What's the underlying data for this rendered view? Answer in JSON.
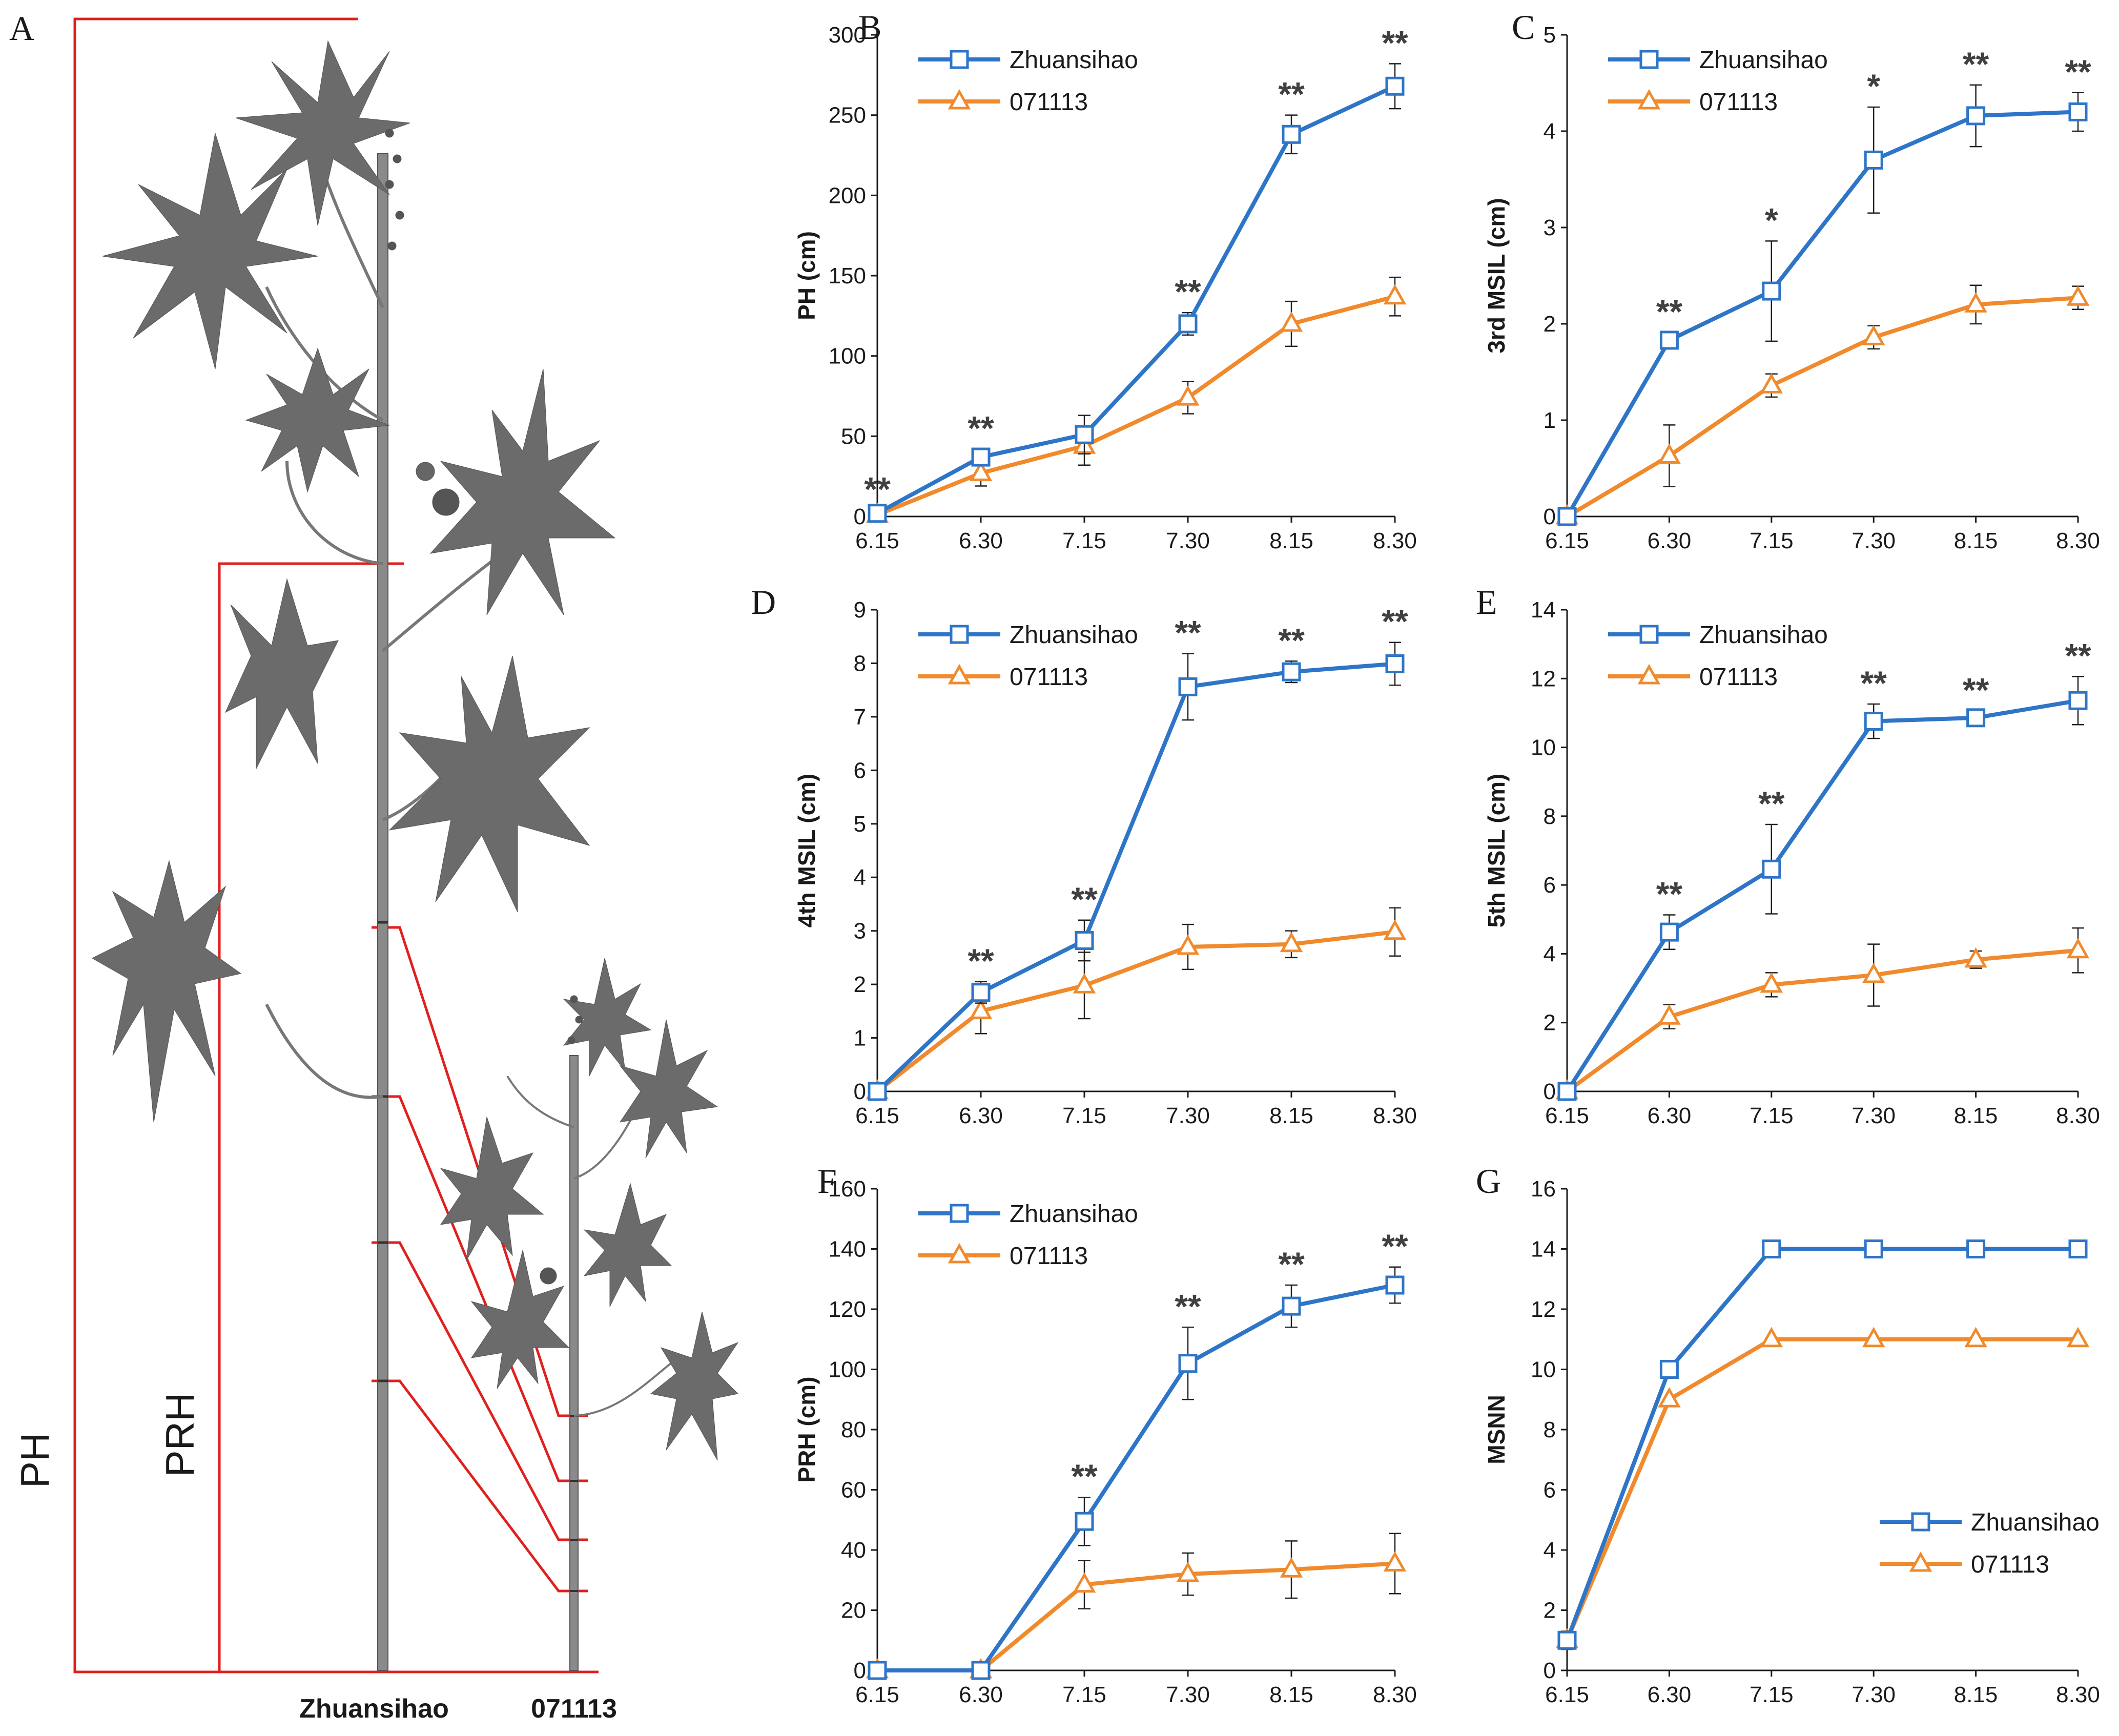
{
  "colors": {
    "series1": "#2E75C8",
    "series2": "#F08A2C",
    "bracket": "#E0201E",
    "axis": "#1a1a1a",
    "plant": "#555555"
  },
  "panel_a": {
    "letter": "A",
    "ph_label": "PH",
    "prh_label": "PRH",
    "cultivar_left": "Zhuansihao",
    "cultivar_right": "071113"
  },
  "chart_data": [
    {
      "id": "B",
      "letter": "B",
      "type": "line",
      "ylabel": "PH (cm)",
      "ylim": [
        0,
        300
      ],
      "yticks": [
        0,
        50,
        100,
        150,
        200,
        250,
        300
      ],
      "categories": [
        "6.15",
        "6.30",
        "7.15",
        "7.30",
        "8.15",
        "8.30"
      ],
      "legend_position": "top-left",
      "series": [
        {
          "name": "Zhuansihao",
          "marker": "square",
          "values": [
            2,
            37,
            51,
            120,
            238,
            268
          ],
          "errors": [
            2,
            5,
            12,
            7,
            12,
            14
          ]
        },
        {
          "name": "071113",
          "marker": "triangle",
          "values": [
            1,
            27,
            44,
            74,
            120,
            137
          ],
          "errors": [
            1,
            8,
            12,
            10,
            14,
            12
          ]
        }
      ],
      "significance": [
        "**",
        "**",
        "",
        "**",
        "**",
        "**"
      ]
    },
    {
      "id": "C",
      "letter": "C",
      "type": "line",
      "ylabel": "3rd MSIL (cm)",
      "ylim": [
        0,
        5
      ],
      "yticks": [
        0,
        1,
        2,
        3,
        4,
        5
      ],
      "categories": [
        "6.15",
        "6.30",
        "7.15",
        "7.30",
        "8.15",
        "8.30"
      ],
      "legend_position": "top-left",
      "series": [
        {
          "name": "Zhuansihao",
          "marker": "square",
          "values": [
            0,
            1.83,
            2.34,
            3.7,
            4.16,
            4.2
          ],
          "errors": [
            0,
            0.08,
            0.52,
            0.55,
            0.32,
            0.2
          ]
        },
        {
          "name": "071113",
          "marker": "triangle",
          "values": [
            0,
            0.63,
            1.36,
            1.86,
            2.2,
            2.27
          ],
          "errors": [
            0,
            0.32,
            0.12,
            0.12,
            0.2,
            0.12
          ]
        }
      ],
      "significance": [
        "",
        "**",
        "*",
        "*",
        "**",
        "**"
      ]
    },
    {
      "id": "D",
      "letter": "D",
      "type": "line",
      "ylabel": "4th MSIL (cm)",
      "ylim": [
        0,
        9
      ],
      "yticks": [
        0,
        1,
        2,
        3,
        4,
        5,
        6,
        7,
        8,
        9
      ],
      "categories": [
        "6.15",
        "6.30",
        "7.15",
        "7.30",
        "8.15",
        "8.30"
      ],
      "legend_position": "top-left",
      "series": [
        {
          "name": "Zhuansihao",
          "marker": "square",
          "values": [
            0,
            1.85,
            2.82,
            7.56,
            7.84,
            7.99
          ],
          "errors": [
            0,
            0.2,
            0.38,
            0.62,
            0.2,
            0.4
          ]
        },
        {
          "name": "071113",
          "marker": "triangle",
          "values": [
            0,
            1.5,
            1.98,
            2.7,
            2.75,
            2.98
          ],
          "errors": [
            0,
            0.42,
            0.62,
            0.42,
            0.25,
            0.45
          ]
        }
      ],
      "significance": [
        "",
        "**",
        "**",
        "**",
        "**",
        "**"
      ]
    },
    {
      "id": "E",
      "letter": "E",
      "type": "line",
      "ylabel": "5th MSIL (cm)",
      "ylim": [
        0,
        14
      ],
      "yticks": [
        0,
        2,
        4,
        6,
        8,
        10,
        12,
        14
      ],
      "categories": [
        "6.15",
        "6.30",
        "7.15",
        "7.30",
        "8.15",
        "8.30"
      ],
      "legend_position": "top-left",
      "series": [
        {
          "name": "Zhuansihao",
          "marker": "square",
          "values": [
            0,
            4.63,
            6.46,
            10.76,
            10.86,
            11.36
          ],
          "errors": [
            0,
            0.5,
            1.3,
            0.5,
            0.2,
            0.7
          ]
        },
        {
          "name": "071113",
          "marker": "triangle",
          "values": [
            0,
            2.17,
            3.1,
            3.38,
            3.83,
            4.1
          ],
          "errors": [
            0,
            0.35,
            0.35,
            0.9,
            0.25,
            0.65
          ]
        }
      ],
      "significance": [
        "",
        "**",
        "**",
        "**",
        "**",
        "**"
      ]
    },
    {
      "id": "F",
      "letter": "F",
      "type": "line",
      "ylabel": "PRH (cm)",
      "ylim": [
        0,
        160
      ],
      "yticks": [
        0,
        20,
        40,
        60,
        80,
        100,
        120,
        140,
        160
      ],
      "categories": [
        "6.15",
        "6.30",
        "7.15",
        "7.30",
        "8.15",
        "8.30"
      ],
      "legend_position": "top-left",
      "series": [
        {
          "name": "Zhuansihao",
          "marker": "square",
          "values": [
            0,
            0,
            49.5,
            102,
            121,
            128
          ],
          "errors": [
            0,
            0,
            8,
            12,
            7,
            6
          ]
        },
        {
          "name": "071113",
          "marker": "triangle",
          "values": [
            0,
            0,
            28.5,
            32,
            33.5,
            35.5
          ],
          "errors": [
            0,
            0,
            8,
            7,
            9.5,
            10
          ]
        }
      ],
      "significance": [
        "",
        "",
        "**",
        "**",
        "**",
        "**"
      ]
    },
    {
      "id": "G",
      "letter": "G",
      "type": "line",
      "ylabel": "MSNN",
      "ylim": [
        0,
        16
      ],
      "yticks": [
        0,
        2,
        4,
        6,
        8,
        10,
        12,
        14,
        16
      ],
      "categories": [
        "6.15",
        "6.30",
        "7.15",
        "7.30",
        "8.15",
        "8.30"
      ],
      "legend_position": "bottom-right",
      "series": [
        {
          "name": "Zhuansihao",
          "marker": "square",
          "values": [
            1,
            10,
            14,
            14,
            14,
            14
          ],
          "errors": [
            0.3,
            0,
            0,
            0,
            0,
            0
          ]
        },
        {
          "name": "071113",
          "marker": "triangle",
          "values": [
            1,
            9,
            11,
            11,
            11,
            11
          ],
          "errors": [
            0.3,
            0,
            0,
            0,
            0,
            0
          ]
        }
      ],
      "significance": [
        "",
        "",
        "",
        "",
        "",
        ""
      ]
    }
  ]
}
